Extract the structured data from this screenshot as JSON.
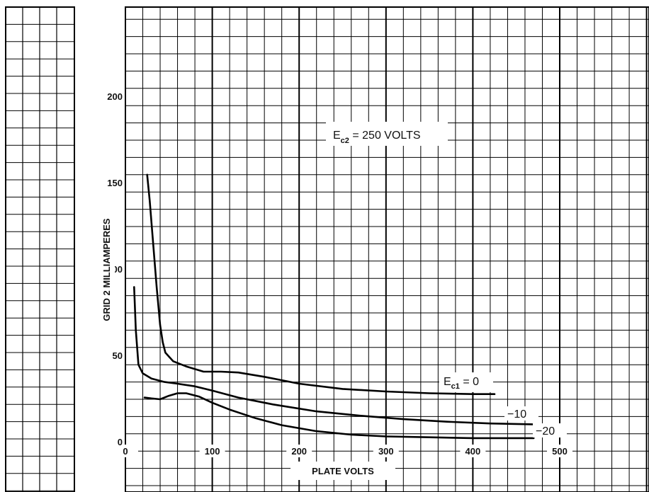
{
  "chart_data": {
    "type": "line",
    "title": "",
    "xlabel": "PLATE VOLTS",
    "ylabel": "GRID 2 MILLIAMPERES",
    "xlim": [
      0,
      600
    ],
    "ylim": [
      0,
      250
    ],
    "x_ticks": [
      {
        "value": 0,
        "label": "0"
      },
      {
        "value": 100,
        "label": "100"
      },
      {
        "value": 200,
        "label": "200"
      },
      {
        "value": 300,
        "label": "300"
      },
      {
        "value": 400,
        "label": "400"
      },
      {
        "value": 500,
        "label": "500"
      }
    ],
    "y_ticks": [
      {
        "value": 0,
        "label": "0"
      },
      {
        "value": 50,
        "label": "50"
      },
      {
        "value": 100,
        "label": "100"
      },
      {
        "value": 150,
        "label": "150"
      },
      {
        "value": 200,
        "label": "200"
      }
    ],
    "grid": true,
    "condition": {
      "main": "E",
      "sub": "c2",
      "rest": " = 250 VOLTS"
    },
    "series": [
      {
        "name": "0",
        "label_prefix": "E",
        "label_sub": "c1",
        "label_text": " = 0",
        "x": [
          25,
          28,
          32,
          36,
          40,
          43,
          46,
          55,
          70,
          90,
          110,
          130,
          160,
          200,
          250,
          300,
          350,
          400,
          425
        ],
        "y": [
          155,
          140,
          115,
          90,
          68,
          58,
          52,
          47,
          44,
          41,
          41,
          40.5,
          38,
          34,
          31,
          29.5,
          28.5,
          28,
          28
        ]
      },
      {
        "name": "-10",
        "label_text": "−10",
        "x": [
          10,
          12,
          15,
          20,
          30,
          45,
          60,
          80,
          100,
          130,
          170,
          220,
          270,
          320,
          370,
          420,
          470
        ],
        "y": [
          90,
          65,
          45,
          40,
          37,
          35,
          34,
          32.5,
          30,
          26,
          22,
          18,
          15.5,
          13.5,
          12,
          11,
          10.5
        ]
      },
      {
        "name": "-20",
        "label_text": "−20",
        "x": [
          22,
          30,
          40,
          50,
          60,
          70,
          85,
          100,
          120,
          150,
          180,
          220,
          260,
          300,
          350,
          400,
          450,
          470
        ],
        "y": [
          26,
          25.5,
          25,
          27,
          28.5,
          28.5,
          26.5,
          23,
          19,
          14,
          10,
          6.5,
          4.5,
          3.5,
          3,
          2.5,
          2.5,
          2.5
        ]
      }
    ]
  }
}
